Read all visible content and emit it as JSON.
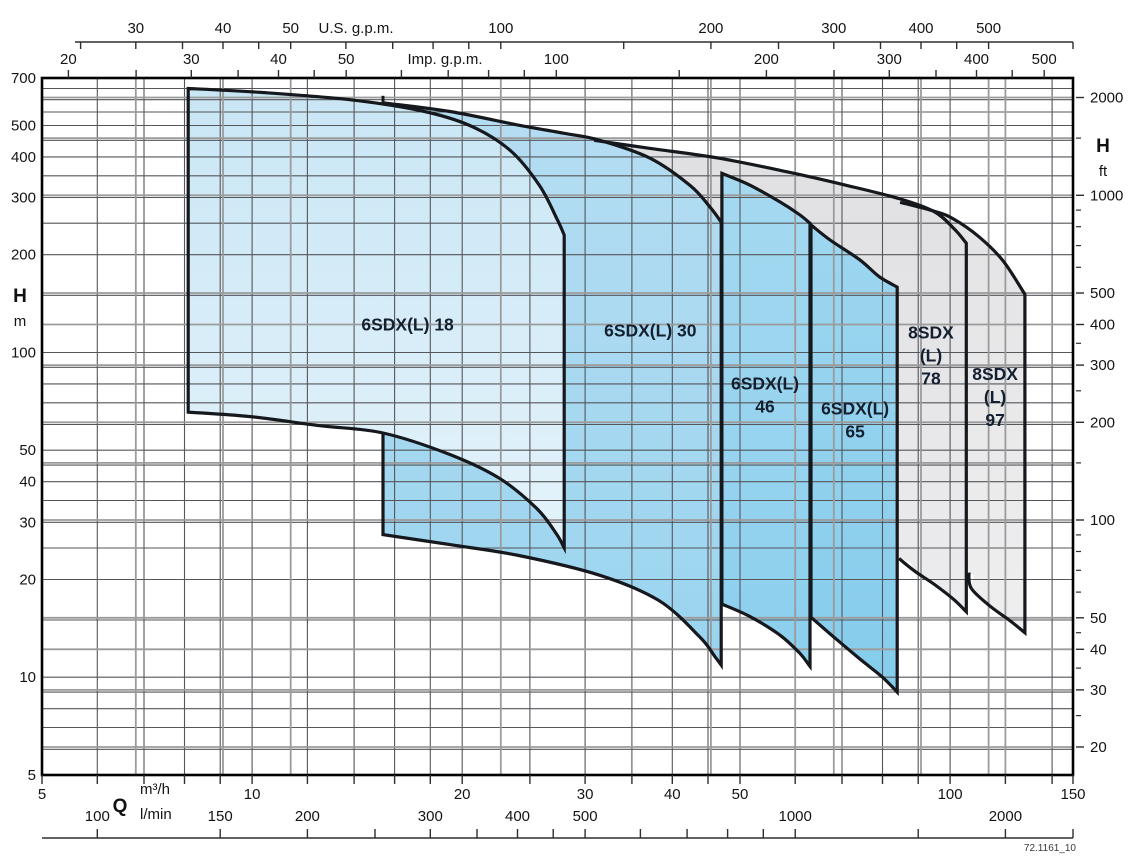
{
  "figure_code": "72.1161_10",
  "chart_data": {
    "type": "area",
    "title": "",
    "description": "Submersible pump selection chart: operating ranges (flow Q vs head H) on logarithmic axes",
    "plot": {
      "q_range_m3h": [
        5,
        150
      ],
      "h_range_m": [
        5,
        700
      ],
      "log_x": true,
      "log_y": true,
      "grid": true
    },
    "axes": {
      "q_usgpm": {
        "unit_label": "U.S. g.p.m.",
        "m3h_per_unit": 0.2271247,
        "labeled_ticks": [
          30,
          40,
          50,
          100,
          200,
          300,
          400,
          500
        ],
        "minor_ticks": [
          25,
          35,
          45,
          60,
          70,
          80,
          90,
          150,
          250,
          350,
          450
        ]
      },
      "q_impgpm": {
        "unit_label": "Imp. g.p.m.",
        "m3h_per_unit": 0.272766,
        "labeled_ticks": [
          20,
          30,
          40,
          50,
          100,
          200,
          300,
          400,
          500
        ],
        "minor_ticks": [
          25,
          35,
          45,
          60,
          70,
          80,
          90,
          150,
          250,
          350,
          450
        ]
      },
      "q_m3h": {
        "axis_letter": "Q",
        "unit_label": "m³/h",
        "labeled_ticks": [
          5,
          10,
          20,
          30,
          40,
          50,
          100,
          150
        ],
        "minor_ticks": [
          6,
          7,
          8,
          9,
          12,
          14,
          16,
          18,
          25,
          35,
          45,
          60,
          70,
          80,
          90,
          120,
          140
        ]
      },
      "q_lmin": {
        "unit_label": "l/min",
        "m3h_per_unit": 0.06,
        "labeled_ticks": [
          100,
          150,
          200,
          300,
          400,
          500,
          1000,
          2000
        ],
        "minor_ticks": [
          250,
          350,
          450,
          600,
          700,
          800,
          900,
          1500
        ]
      },
      "h_m": {
        "axis_letter": "H",
        "unit_label": "m",
        "labeled_ticks": [
          700,
          500,
          400,
          300,
          200,
          100,
          50,
          40,
          30,
          20,
          10,
          5
        ]
      },
      "h_ft": {
        "axis_letter": "H",
        "unit_label": "ft",
        "m_per_unit": 0.3048,
        "labeled_ticks": [
          2000,
          1000,
          500,
          400,
          300,
          200,
          100,
          50,
          40,
          30,
          20
        ],
        "minor_ticks": [
          1500,
          900,
          800,
          700,
          600,
          350,
          250,
          150,
          90,
          80,
          70,
          60,
          45,
          35,
          25
        ]
      }
    },
    "grid": {
      "q_dark_m3h": [
        6,
        7,
        8,
        9,
        10,
        12,
        14,
        16,
        18,
        20,
        25,
        30,
        35,
        40,
        45,
        50,
        60,
        70,
        80,
        90,
        100,
        120,
        140
      ],
      "h_dark_m": [
        6,
        7,
        8,
        9,
        10,
        15,
        20,
        25,
        30,
        35,
        40,
        45,
        50,
        60,
        70,
        80,
        90,
        100,
        150,
        200,
        250,
        300,
        350,
        400,
        450,
        500,
        550,
        600,
        650
      ],
      "h_gray_ft": [
        2000,
        1500,
        1000,
        500,
        400,
        300,
        200,
        150,
        100,
        50,
        40,
        30,
        20
      ],
      "q_gray_usgpm": [
        30,
        40,
        50,
        100,
        200,
        300,
        400,
        500
      ],
      "q_gray_lmin": [
        1000,
        2000
      ]
    },
    "envelopes": [
      {
        "id": "8sdx-l-97",
        "name": "8SDX (L) 97",
        "label_lines": [
          "8SDX",
          "(L)",
          "97"
        ],
        "label_at": {
          "q": 116,
          "h": 73
        },
        "fill_top": "#e2e2e4",
        "fill_bottom": "#efeff0",
        "q_min": 42,
        "q_max": 128,
        "top": [
          [
            42,
            400
          ],
          [
            52,
            368
          ],
          [
            60,
            345
          ],
          [
            71.1,
            318
          ],
          [
            84.8,
            290
          ],
          [
            95,
            272
          ],
          [
            101,
            258
          ],
          [
            110,
            227
          ],
          [
            119,
            192
          ],
          [
            128,
            151
          ]
        ],
        "bottom": [
          [
            42,
            29.6
          ],
          [
            60.8,
            26.7
          ],
          [
            84.8,
            23.8
          ],
          [
            106.4,
            21
          ],
          [
            107.2,
            18.8
          ],
          [
            113.9,
            16.6
          ],
          [
            122,
            14.9
          ],
          [
            128,
            13.7
          ]
        ],
        "stroke": {
          "top_from_q": 84.8,
          "bottom_from_q": 106.4,
          "left": "none"
        }
      },
      {
        "id": "8sdx-l-78",
        "name": "8SDX (L) 78",
        "label_lines": [
          "8SDX",
          "(L)",
          "78"
        ],
        "label_at": {
          "q": 93.9,
          "h": 98
        },
        "fill_top": "#e0e0e2",
        "fill_bottom": "#ececee",
        "q_min": 30.9,
        "q_max": 105.5,
        "top": [
          [
            30.9,
            450
          ],
          [
            37.2,
            425
          ],
          [
            46.8,
            396
          ],
          [
            58.4,
            360
          ],
          [
            71.1,
            327
          ],
          [
            84.8,
            297
          ],
          [
            95,
            271
          ],
          [
            101.4,
            240
          ],
          [
            105.5,
            217
          ]
        ],
        "bottom": [
          [
            30.9,
            31.8
          ],
          [
            43.8,
            28.7
          ],
          [
            60.8,
            26
          ],
          [
            84.5,
            23.2
          ],
          [
            89,
            21.2
          ],
          [
            95,
            19.3
          ],
          [
            101.4,
            17.3
          ],
          [
            105.5,
            15.9
          ]
        ],
        "stroke": {
          "top_from_q": 30.9,
          "bottom_from_q": 84.5,
          "left": "none"
        }
      },
      {
        "id": "6sdx-l-65",
        "name": "6SDX(L) 65",
        "label_lines": [
          "6SDX(L)",
          "65"
        ],
        "label_at": {
          "q": 73.1,
          "h": 62
        },
        "fill_top": "#9dd6ef",
        "fill_bottom": "#85ccec",
        "q_min": 63.2,
        "q_max": 84,
        "top": [
          [
            63.2,
            247
          ],
          [
            67.3,
            222
          ],
          [
            74.2,
            193
          ],
          [
            79.2,
            171
          ],
          [
            84,
            159
          ]
        ],
        "bottom": [
          [
            63.2,
            15.3
          ],
          [
            67.3,
            13.6
          ],
          [
            74.2,
            11.4
          ],
          [
            80,
            10
          ],
          [
            84,
            9
          ]
        ],
        "stroke": {
          "top_from_q": 63.2,
          "bottom_from_q": 63.2,
          "left": "full"
        }
      },
      {
        "id": "6sdx-l-46",
        "name": "6SDX(L) 46",
        "label_lines": [
          "6SDX(L)",
          "46"
        ],
        "label_at": {
          "q": 54.3,
          "h": 74
        },
        "fill_top": "#a5d9f0",
        "fill_bottom": "#8bcfee",
        "q_min": 47.1,
        "q_max": 63,
        "top": [
          [
            47.1,
            356
          ],
          [
            51.6,
            328
          ],
          [
            57,
            291
          ],
          [
            60.8,
            266
          ],
          [
            63,
            250
          ]
        ],
        "bottom": [
          [
            47.1,
            16.8
          ],
          [
            51.6,
            15.4
          ],
          [
            57,
            13.5
          ],
          [
            60.8,
            11.9
          ],
          [
            63,
            10.8
          ]
        ],
        "stroke": {
          "top_from_q": 47.1,
          "bottom_from_q": 47.1,
          "left": "full"
        }
      },
      {
        "id": "6sdx-l-30",
        "name": "6SDX(L) 30",
        "label_lines": [
          "6SDX(L) 30"
        ],
        "label_at": {
          "q": 37.2,
          "h": 117
        },
        "fill_top": "#b5ddf2",
        "fill_bottom": "#9ad4ef",
        "q_min": 15.4,
        "q_max": 47,
        "top": [
          [
            15.4,
            587
          ],
          [
            19.2,
            552
          ],
          [
            24.1,
            501
          ],
          [
            28,
            473
          ],
          [
            31.5,
            450
          ],
          [
            37.2,
            396
          ],
          [
            42.4,
            327
          ],
          [
            45.3,
            280
          ],
          [
            47,
            252
          ]
        ],
        "bottom": [
          [
            15.4,
            27.5
          ],
          [
            19.2,
            25.6
          ],
          [
            24.1,
            23.7
          ],
          [
            31.5,
            20.6
          ],
          [
            38.3,
            17.2
          ],
          [
            43.8,
            13.3
          ],
          [
            46,
            11.6
          ],
          [
            47,
            10.9
          ]
        ],
        "stroke": {
          "top_from_q": 15.4,
          "bottom_from_q": 15.4,
          "left": "to_h",
          "left_to_h": 56.5
        }
      },
      {
        "id": "6sdx-l-18",
        "name": "6SDX(L) 18",
        "label_lines": [
          "6SDX(L) 18"
        ],
        "label_at": {
          "q": 16.7,
          "h": 122
        },
        "fill_top": "#c9e6f5",
        "fill_bottom": "#e4f3fb",
        "q_min": 8.1,
        "q_max": 28,
        "top": [
          [
            8.1,
            650
          ],
          [
            10.3,
            632
          ],
          [
            13.8,
            600
          ],
          [
            17.4,
            556
          ],
          [
            20.5,
            500
          ],
          [
            23.4,
            420
          ],
          [
            25.8,
            327
          ],
          [
            27.4,
            255
          ],
          [
            28,
            230
          ]
        ],
        "bottom": [
          [
            8.1,
            65.5
          ],
          [
            9.9,
            63.5
          ],
          [
            12.5,
            59.5
          ],
          [
            15.4,
            56.5
          ],
          [
            19.2,
            48.5
          ],
          [
            22.6,
            41
          ],
          [
            25.6,
            33
          ],
          [
            27.3,
            27.6
          ],
          [
            28,
            25
          ]
        ],
        "stroke": {
          "top_from_q": 8.1,
          "bottom_from_q": 8.1,
          "left": "full"
        }
      }
    ],
    "overlay_ticks": [
      {
        "q": 15.4,
        "h_from": 617,
        "h_to": 585
      }
    ],
    "colors": {
      "outline": "#15181c",
      "grid_dark": "#55565a",
      "grid_gray": "#9b9b9b",
      "border": "#000000",
      "axis_line": "#2e2e2e",
      "text": "#141414",
      "region_label": "#142030",
      "watermark": "#3a3a3a"
    }
  }
}
